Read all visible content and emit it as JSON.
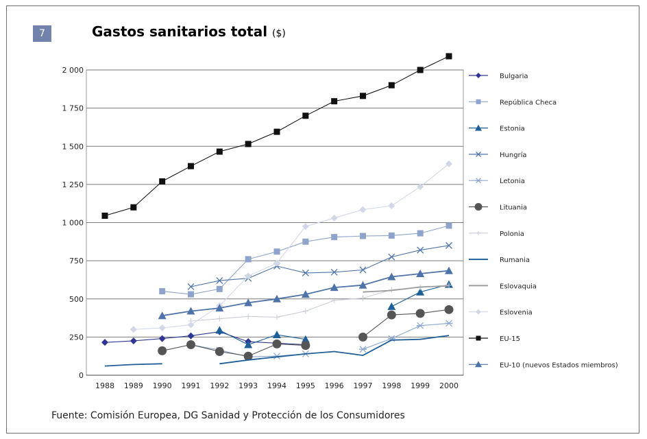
{
  "badge": "7",
  "title": "Gastos sanitarios total",
  "title_unit": "($)",
  "source": "Fuente: Comisión Europea, DG Sanidad y Protección de los Consumidores",
  "chart_data": {
    "type": "line",
    "title": "Gastos sanitarios total ($)",
    "xlabel": "",
    "ylabel": "",
    "x": [
      1988,
      1989,
      1990,
      1991,
      1992,
      1993,
      1994,
      1995,
      1996,
      1997,
      1998,
      1999,
      2000
    ],
    "ylim": [
      0,
      2000
    ],
    "yticks": [
      0,
      250,
      500,
      750,
      1000,
      1250,
      1500,
      1750,
      2000
    ],
    "ytick_labels": [
      "0",
      "250",
      "500",
      "750",
      "1 000",
      "1 250",
      "1 500",
      "1 750",
      "2 000"
    ],
    "xtick_labels": [
      "1988",
      "1989",
      "1990",
      "1991",
      "1992",
      "1993",
      "1994",
      "1995",
      "1996",
      "1997",
      "1998",
      "1999",
      "2000"
    ],
    "grid": "horizontal",
    "legend_position": "right",
    "series": [
      {
        "name": "Bulgaria",
        "color": "#2e3592",
        "marker": "diamond",
        "values": [
          215,
          225,
          240,
          258,
          285,
          220,
          210,
          200,
          null,
          null,
          null,
          null,
          null
        ]
      },
      {
        "name": "República Checa",
        "color": "#8fa4cc",
        "marker": "square",
        "values": [
          null,
          null,
          550,
          530,
          565,
          760,
          810,
          875,
          905,
          912,
          915,
          930,
          980
        ]
      },
      {
        "name": "Estonia",
        "color": "#1f5f98",
        "marker": "triangle",
        "values": [
          null,
          null,
          null,
          null,
          295,
          200,
          265,
          235,
          null,
          null,
          450,
          545,
          595
        ]
      },
      {
        "name": "Hungría",
        "color": "#4d73a8",
        "marker": "x",
        "values": [
          null,
          null,
          null,
          580,
          620,
          635,
          715,
          670,
          675,
          690,
          775,
          820,
          850
        ]
      },
      {
        "name": "Letonia",
        "color": "#8da7d0",
        "marker": "asterisk",
        "values": [
          null,
          null,
          null,
          200,
          165,
          120,
          125,
          140,
          null,
          170,
          240,
          325,
          340
        ]
      },
      {
        "name": "Lituania",
        "color": "#555555",
        "marker": "circle",
        "values": [
          null,
          null,
          160,
          200,
          155,
          125,
          205,
          195,
          null,
          250,
          395,
          405,
          430
        ]
      },
      {
        "name": "Polonia",
        "color": "#c9cdd4",
        "marker": "plus",
        "values": [
          null,
          null,
          null,
          355,
          370,
          385,
          380,
          420,
          490,
          505,
          560,
          575,
          590
        ]
      },
      {
        "name": "Rumania",
        "color": "#1f5f98",
        "marker": "none",
        "segments": [
          [
            1988,
            60
          ],
          [
            1989,
            70
          ],
          [
            1990,
            75
          ],
          null,
          [
            1992,
            75
          ],
          [
            1993,
            100
          ],
          [
            1994,
            120
          ],
          [
            1995,
            140
          ],
          [
            1996,
            155
          ],
          [
            1997,
            130
          ],
          [
            1998,
            230
          ],
          [
            1999,
            235
          ],
          [
            2000,
            260
          ]
        ]
      },
      {
        "name": "Eslovaquia",
        "color": "#9c9c9c",
        "marker": "none",
        "values": [
          null,
          null,
          null,
          null,
          null,
          null,
          null,
          null,
          null,
          545,
          555,
          578,
          585
        ]
      },
      {
        "name": "Eslovenia",
        "color": "#d2d8e8",
        "marker": "diamond",
        "values": [
          null,
          300,
          310,
          330,
          455,
          650,
          735,
          975,
          1030,
          1085,
          1110,
          1235,
          1385
        ]
      },
      {
        "name": "EU-15",
        "color": "#111111",
        "marker": "square",
        "values": [
          1045,
          1100,
          1270,
          1370,
          1465,
          1515,
          1595,
          1700,
          1795,
          1830,
          1900,
          2000,
          2090
        ]
      },
      {
        "name": "EU-10 (nuevos Estados miembros)",
        "color": "#4d73a8",
        "marker": "triangle",
        "values": [
          null,
          null,
          390,
          420,
          440,
          475,
          500,
          530,
          575,
          590,
          645,
          665,
          685
        ]
      }
    ]
  }
}
